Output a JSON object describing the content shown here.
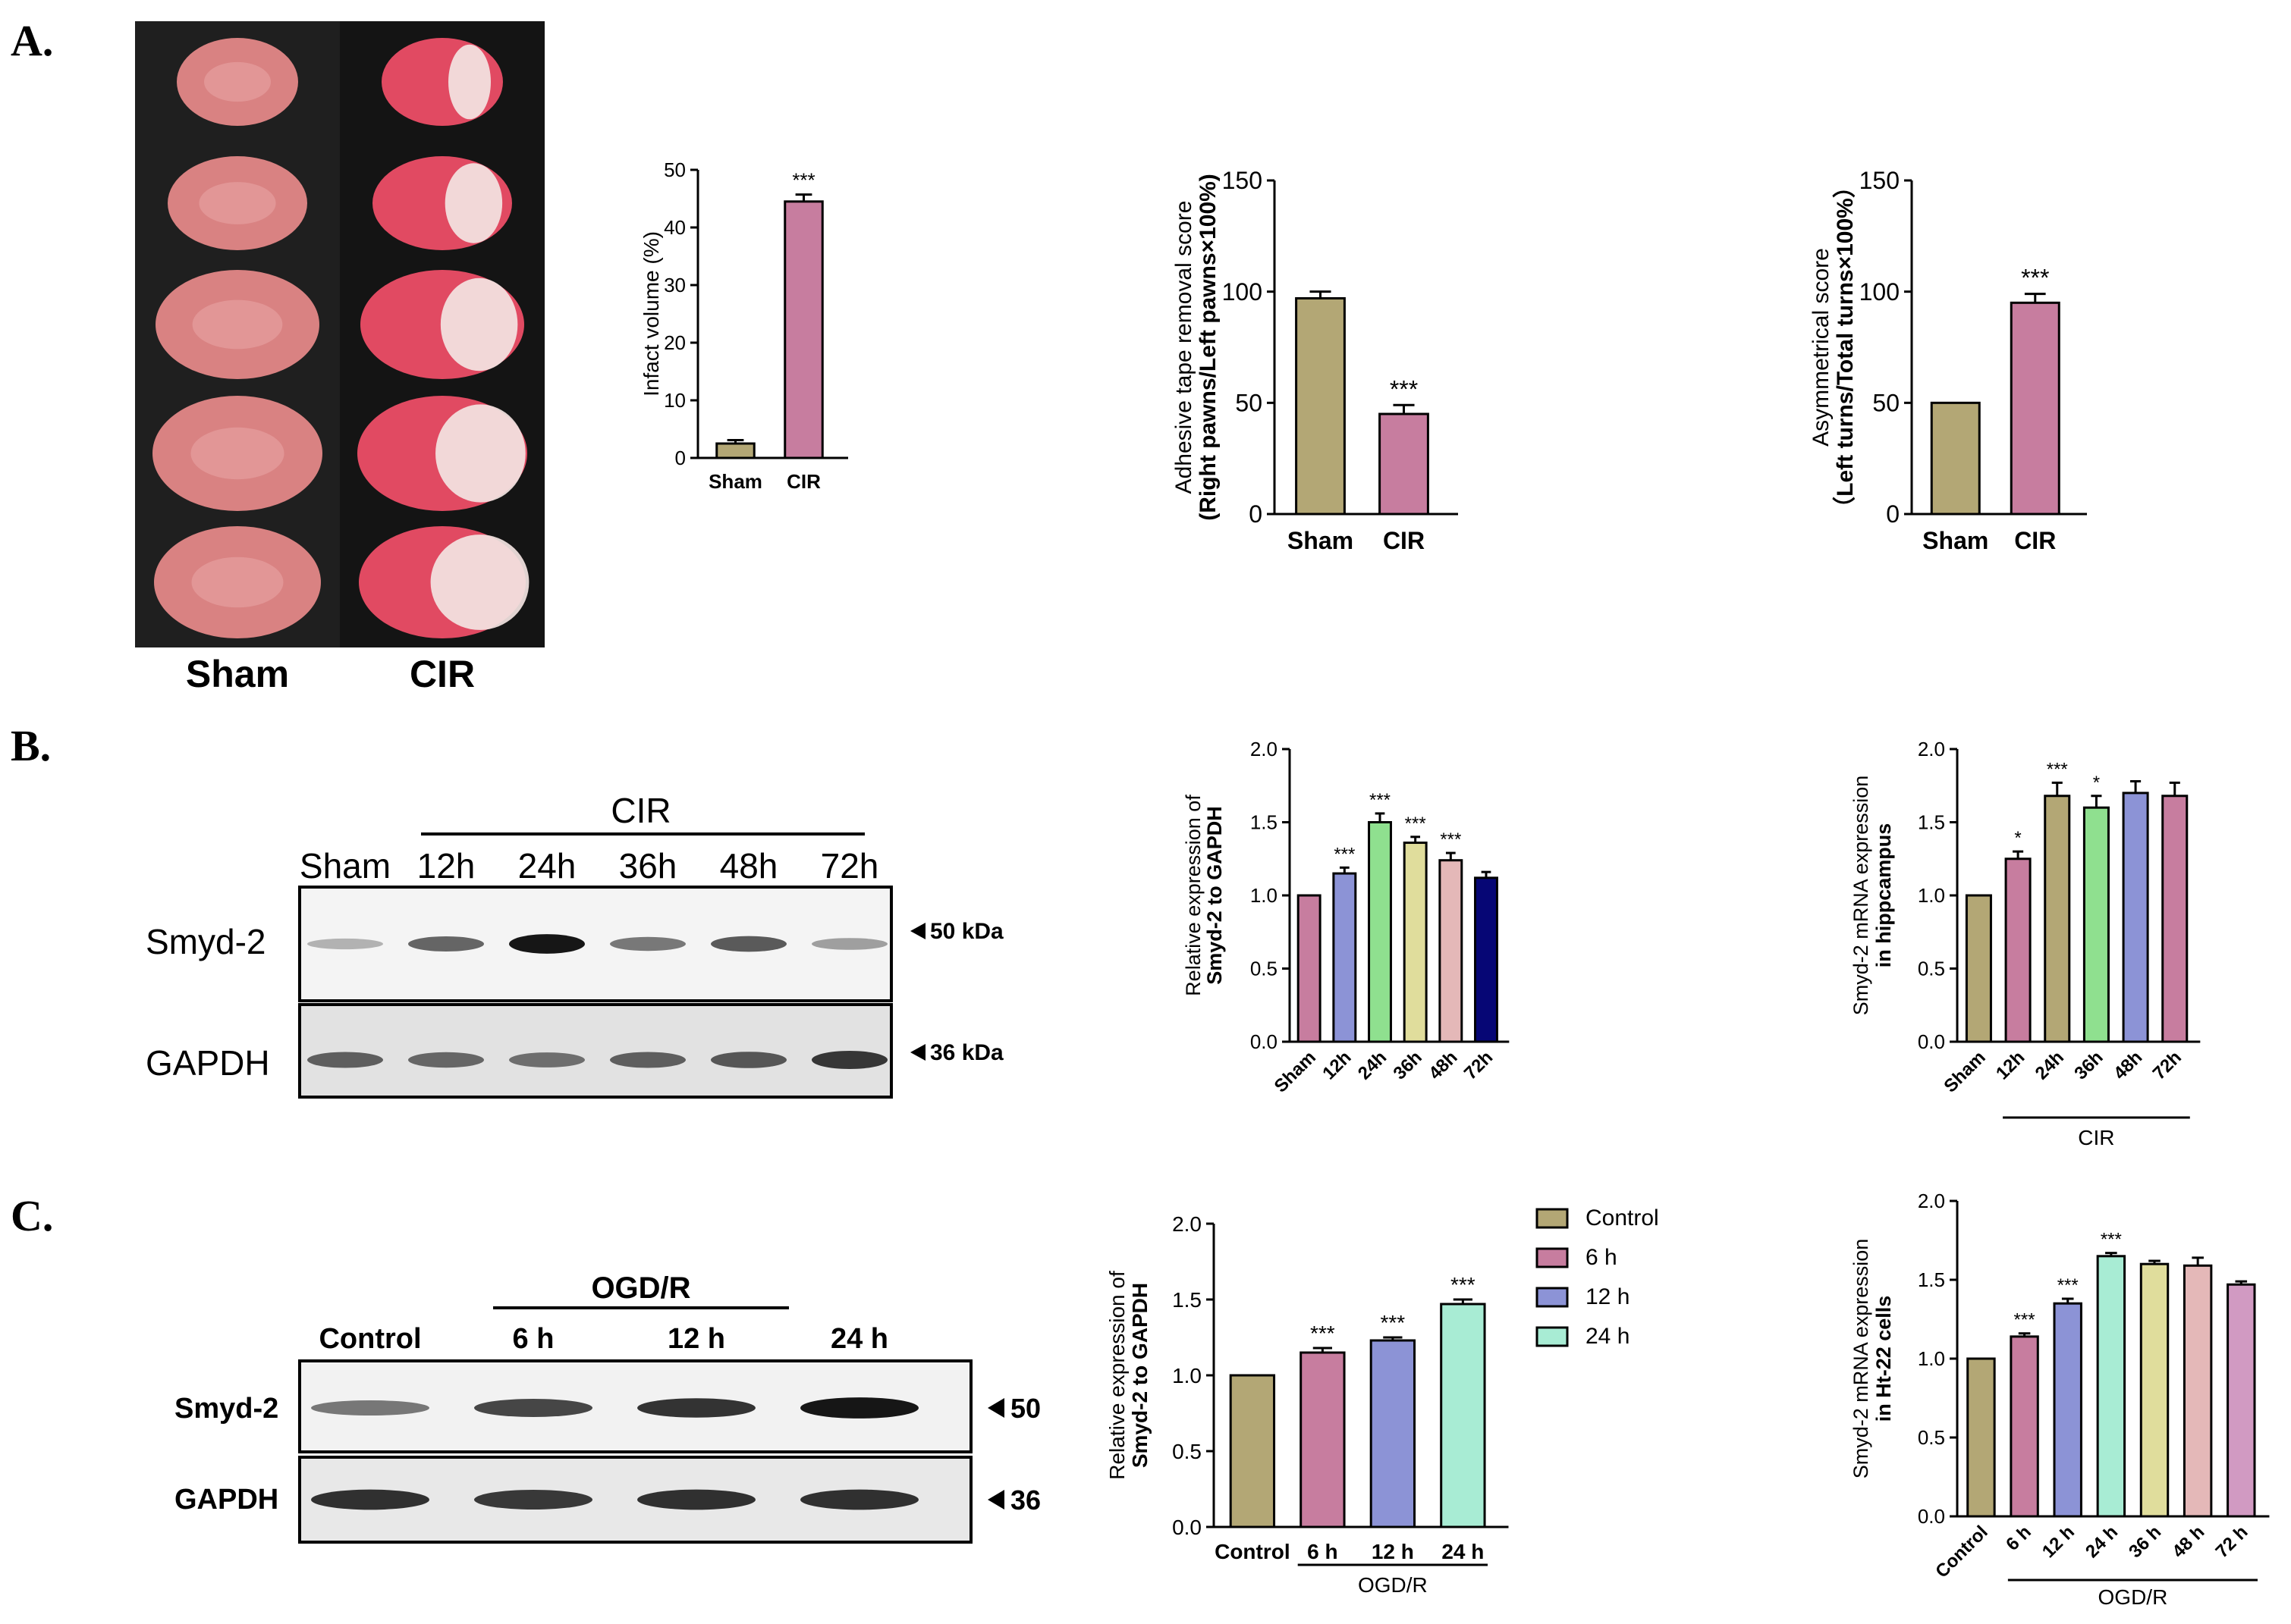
{
  "panels": {
    "a": "A.",
    "b": "B.",
    "c": "C."
  },
  "photo": {
    "labels": [
      "Sham",
      "CIR"
    ],
    "colors": {
      "sham_tissue": "#d98282",
      "cir_red": "#e14a62",
      "cir_white": "#f3e4e2",
      "background": "#1a1a1a"
    }
  },
  "blot_b": {
    "group": "CIR",
    "lanes": [
      "Sham",
      "12h",
      "24h",
      "36h",
      "48h",
      "72h"
    ],
    "rows": [
      "Smyd-2",
      "GAPDH"
    ],
    "markers": [
      "50 kDa",
      "36 kDa"
    ],
    "smyd2_intensity": [
      0.15,
      0.55,
      0.95,
      0.45,
      0.6,
      0.25
    ],
    "gapdh_intensity": [
      0.55,
      0.5,
      0.45,
      0.55,
      0.6,
      0.8
    ]
  },
  "blot_c": {
    "group": "OGD/R",
    "lanes": [
      "Control",
      "6 h",
      "12 h",
      "24 h"
    ],
    "rows": [
      "Smyd-2",
      "GAPDH"
    ],
    "markers": [
      "50 kDa",
      "36 kDa"
    ],
    "smyd2_intensity": [
      0.45,
      0.7,
      0.8,
      0.95
    ],
    "gapdh_intensity": [
      0.85,
      0.8,
      0.85,
      0.85
    ]
  },
  "legend_c": {
    "items": [
      "Control",
      "6 h",
      "12 h",
      "24 h"
    ]
  },
  "chart_data": [
    {
      "id": "a1",
      "type": "bar",
      "categories": [
        "Sham",
        "CIR"
      ],
      "values": [
        2.5,
        44.5
      ],
      "errors": [
        0.6,
        1.2
      ],
      "colors": [
        "#b3a775",
        "#c77d9f"
      ],
      "ylabel": "Infact volume (%)",
      "ylim": [
        0,
        50
      ],
      "yticks": [
        0,
        10,
        20,
        30,
        40,
        50
      ],
      "sig": [
        "",
        "***"
      ]
    },
    {
      "id": "a2",
      "type": "bar",
      "categories": [
        "Sham",
        "CIR"
      ],
      "values": [
        97,
        45
      ],
      "errors": [
        3,
        4
      ],
      "colors": [
        "#b3a775",
        "#c77d9f"
      ],
      "ylabel": "Adhesive tape removal score",
      "ylabel2": "(Right pawns/Left pawns×100%)",
      "ylim": [
        0,
        150
      ],
      "yticks": [
        0,
        50,
        100,
        150
      ],
      "sig": [
        "",
        "***"
      ]
    },
    {
      "id": "a3",
      "type": "bar",
      "categories": [
        "Sham",
        "CIR"
      ],
      "values": [
        50,
        95
      ],
      "errors": [
        0,
        4
      ],
      "colors": [
        "#b3a775",
        "#c77d9f"
      ],
      "ylabel": "Asymmetrical score",
      "ylabel2": "（Left turns/Total turns×100%）",
      "ylim": [
        0,
        150
      ],
      "yticks": [
        0,
        50,
        100,
        150
      ],
      "sig": [
        "",
        "***"
      ]
    },
    {
      "id": "b1",
      "type": "bar",
      "categories": [
        "Sham",
        "12h",
        "24h",
        "36h",
        "48h",
        "72h"
      ],
      "values": [
        1.0,
        1.15,
        1.5,
        1.36,
        1.24,
        1.12
      ],
      "errors": [
        0,
        0.04,
        0.06,
        0.04,
        0.05,
        0.04
      ],
      "colors": [
        "#c77d9f",
        "#8c93d6",
        "#8fe08f",
        "#e0dd9c",
        "#e4b8b8",
        "#060675"
      ],
      "ylabel": "Relative expression of",
      "ylabel2": "Smyd-2 to GAPDH",
      "ylim": [
        0,
        2.0
      ],
      "yticks": [
        "0.0",
        "0.5",
        "1.0",
        "1.5",
        "2.0"
      ],
      "sig": [
        "",
        "***",
        "***",
        "***",
        "***",
        ""
      ]
    },
    {
      "id": "b2",
      "type": "bar",
      "categories": [
        "Sham",
        "12h",
        "24h",
        "36h",
        "48h",
        "72h"
      ],
      "values": [
        1.0,
        1.25,
        1.68,
        1.6,
        1.7,
        1.68
      ],
      "errors": [
        0,
        0.05,
        0.09,
        0.08,
        0.08,
        0.09
      ],
      "colors": [
        "#b3a775",
        "#c77d9f",
        "#b3a775",
        "#8fe08f",
        "#8c93d6",
        "#c77d9f"
      ],
      "ylabel": "Smyd-2 mRNA expression",
      "ylabel2": "in hippcampus",
      "ylim": [
        0,
        2.0
      ],
      "yticks": [
        "0.0",
        "0.5",
        "1.0",
        "1.5",
        "2.0"
      ],
      "sig": [
        "",
        "*",
        "***",
        "*",
        "",
        ""
      ],
      "group_label": "CIR"
    },
    {
      "id": "c1",
      "type": "bar",
      "categories": [
        "Control",
        "6 h",
        "12 h",
        "24 h"
      ],
      "values": [
        1.0,
        1.15,
        1.23,
        1.47
      ],
      "errors": [
        0,
        0.03,
        0.02,
        0.03
      ],
      "colors": [
        "#b3a775",
        "#c77d9f",
        "#8c93d6",
        "#a8ecd4"
      ],
      "ylabel": "Relative expression of",
      "ylabel2": "Smyd-2 to GAPDH",
      "ylim": [
        0,
        2.0
      ],
      "yticks": [
        "0.0",
        "0.5",
        "1.0",
        "1.5",
        "2.0"
      ],
      "sig": [
        "",
        "***",
        "***",
        "***"
      ],
      "group_label": "OGD/R"
    },
    {
      "id": "c2",
      "type": "bar",
      "categories": [
        "Control",
        "6 h",
        "12 h",
        "24 h",
        "36 h",
        "48 h",
        "72 h"
      ],
      "values": [
        1.0,
        1.14,
        1.35,
        1.65,
        1.6,
        1.59,
        1.47
      ],
      "errors": [
        0,
        0.02,
        0.03,
        0.02,
        0.02,
        0.05,
        0.02
      ],
      "colors": [
        "#b3a775",
        "#c77d9f",
        "#8c93d6",
        "#a8ecd4",
        "#e0dd9c",
        "#e4b8b8",
        "#d19ac2"
      ],
      "ylabel": "Smyd-2 mRNA expression",
      "ylabel2": "in Ht-22 cells",
      "ylim": [
        0,
        2.0
      ],
      "yticks": [
        "0.0",
        "0.5",
        "1.0",
        "1.5",
        "2.0"
      ],
      "sig": [
        "",
        "***",
        "***",
        "***",
        "",
        "",
        ""
      ],
      "group_label": "OGD/R"
    }
  ]
}
